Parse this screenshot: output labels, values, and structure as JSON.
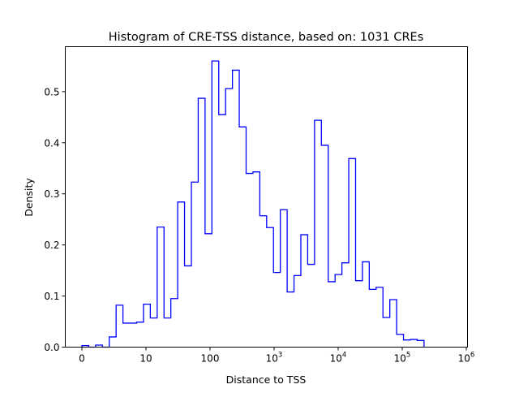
{
  "chart_data": {
    "type": "histogram-step",
    "title": "Histogram of CRE-TSS distance, based on: 1031 CREs",
    "xlabel": "Distance to TSS",
    "ylabel": "Density",
    "x_scale": "symlog",
    "x_linthresh": 10,
    "xlim": [
      -3,
      1000000
    ],
    "ylim": [
      0,
      0.588
    ],
    "x_ticks": [
      {
        "value": 0,
        "label": "0",
        "sup": ""
      },
      {
        "value": 10,
        "label": "10",
        "sup": ""
      },
      {
        "value": 100,
        "label": "100",
        "sup": ""
      },
      {
        "value": 1000,
        "label": "10",
        "sup": "3"
      },
      {
        "value": 10000,
        "label": "10",
        "sup": "4"
      },
      {
        "value": 100000,
        "label": "10",
        "sup": "5"
      },
      {
        "value": 1000000,
        "label": "10",
        "sup": "6"
      }
    ],
    "y_ticks": [
      {
        "value": 0.0,
        "label": "0.0"
      },
      {
        "value": 0.1,
        "label": "0.1"
      },
      {
        "value": 0.2,
        "label": "0.2"
      },
      {
        "value": 0.3,
        "label": "0.3"
      },
      {
        "value": 0.4,
        "label": "0.4"
      },
      {
        "value": 0.5,
        "label": "0.5"
      }
    ],
    "bins_symlog_range": [
      0,
      5.34
    ],
    "values": [
      0.003,
      0,
      0.004,
      0,
      0.02,
      0.082,
      0.047,
      0.047,
      0.049,
      0.084,
      0.057,
      0.235,
      0.057,
      0.095,
      0.284,
      0.159,
      0.323,
      0.487,
      0.222,
      0.56,
      0.455,
      0.506,
      0.542,
      0.431,
      0.34,
      0.343,
      0.257,
      0.234,
      0.146,
      0.269,
      0.108,
      0.14,
      0.22,
      0.162,
      0.444,
      0.395,
      0.128,
      0.142,
      0.165,
      0.369,
      0.13,
      0.167,
      0.113,
      0.117,
      0.058,
      0.093,
      0.025,
      0.014,
      0.015,
      0.013
    ],
    "color": "#0000ff",
    "grid": false
  }
}
